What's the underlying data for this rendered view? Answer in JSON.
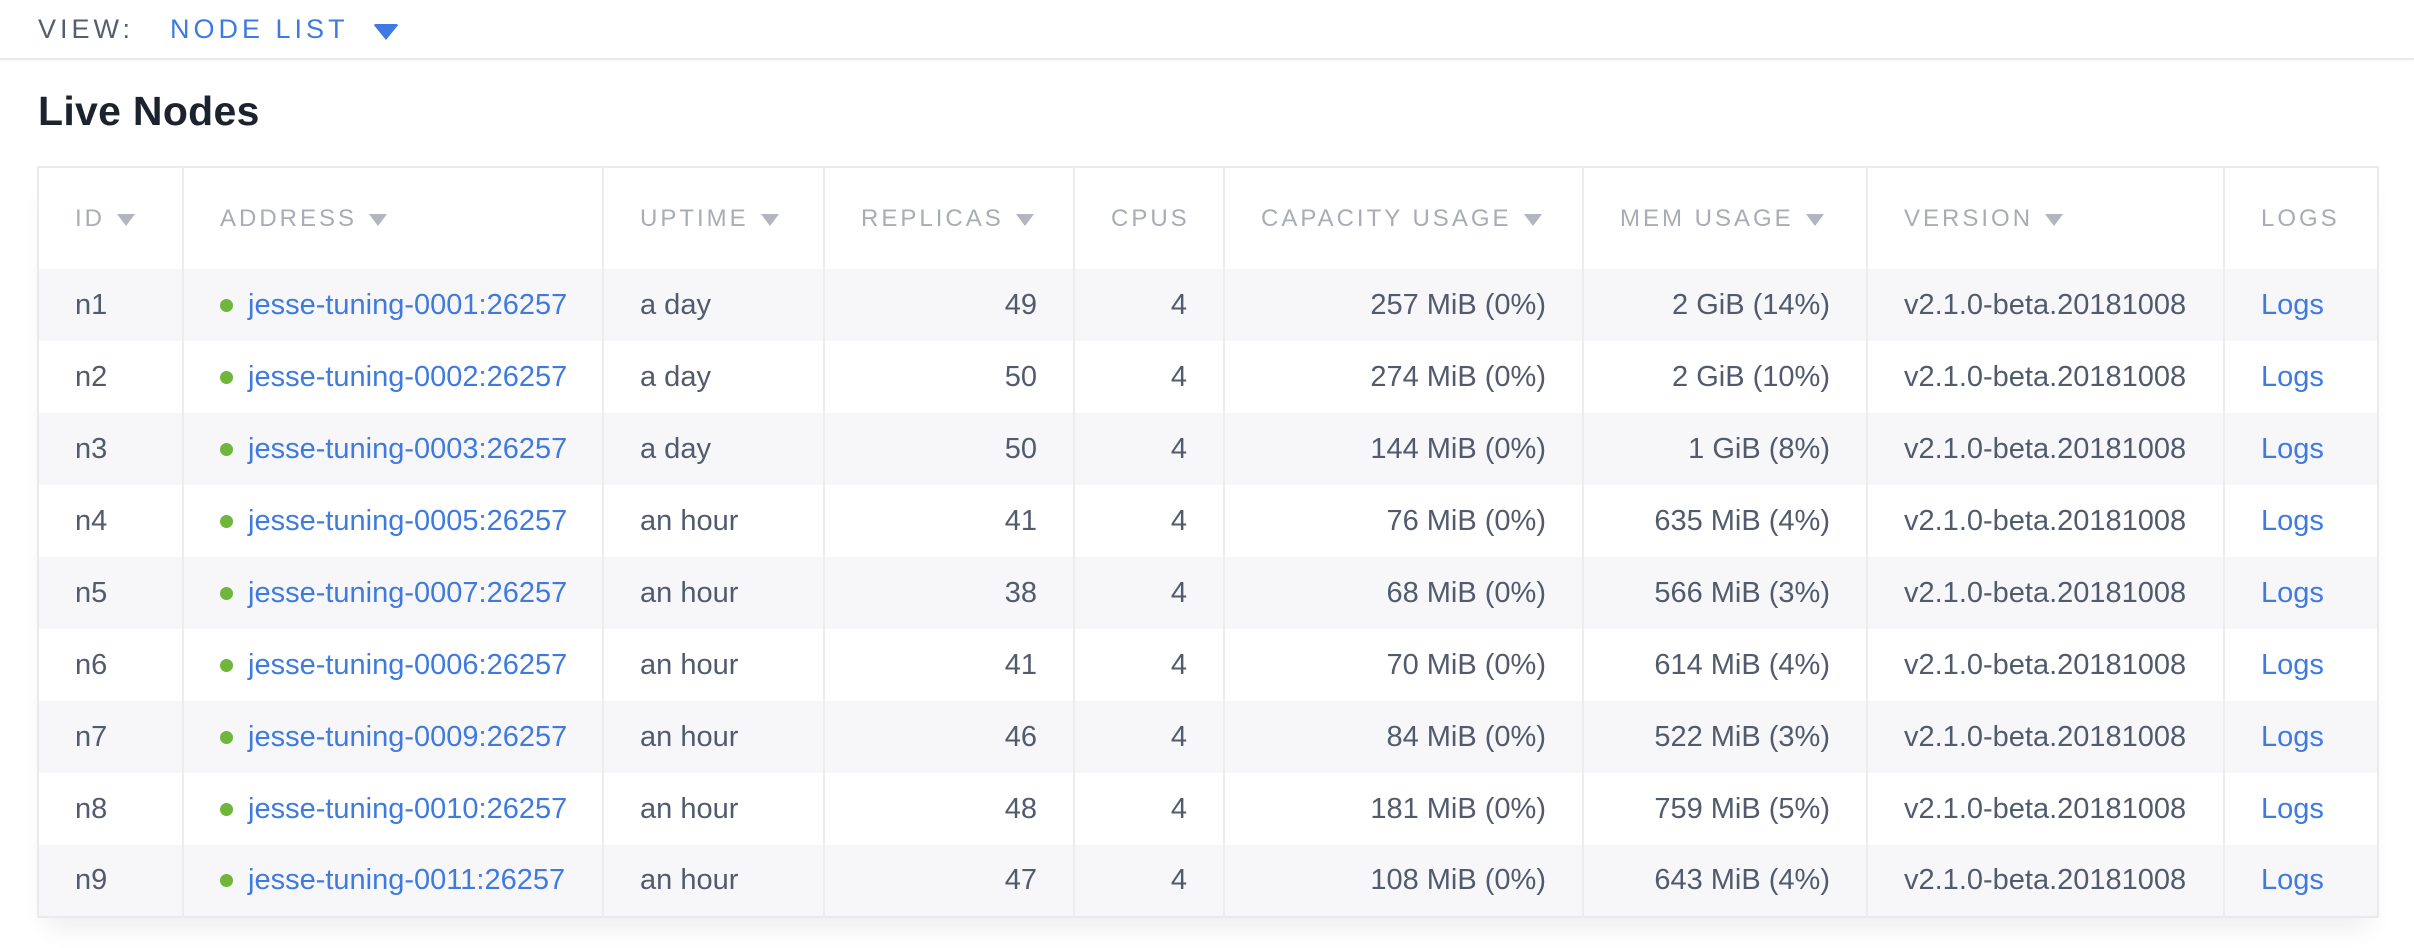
{
  "view_bar": {
    "label": "VIEW:",
    "selected": "NODE LIST"
  },
  "page": {
    "title": "Live Nodes"
  },
  "table": {
    "columns": [
      {
        "key": "id",
        "label": "ID",
        "sortable": true,
        "align": "left",
        "type": "text"
      },
      {
        "key": "address",
        "label": "ADDRESS",
        "sortable": true,
        "align": "left",
        "type": "node-link"
      },
      {
        "key": "uptime",
        "label": "UPTIME",
        "sortable": true,
        "align": "left",
        "type": "text"
      },
      {
        "key": "replicas",
        "label": "REPLICAS",
        "sortable": true,
        "align": "right",
        "type": "text"
      },
      {
        "key": "cpus",
        "label": "CPUS",
        "sortable": false,
        "align": "right",
        "type": "text"
      },
      {
        "key": "capacity_usage",
        "label": "CAPACITY USAGE",
        "sortable": true,
        "align": "right",
        "type": "text"
      },
      {
        "key": "mem_usage",
        "label": "MEM USAGE",
        "sortable": true,
        "align": "right",
        "type": "text"
      },
      {
        "key": "version",
        "label": "VERSION",
        "sortable": true,
        "align": "left",
        "type": "text"
      },
      {
        "key": "logs",
        "label": "LOGS",
        "sortable": false,
        "align": "left",
        "type": "logs-link"
      }
    ],
    "rows": [
      {
        "id": "n1",
        "status": "live",
        "address": "jesse-tuning-0001:26257",
        "uptime": "a day",
        "replicas": "49",
        "cpus": "4",
        "capacity_usage": "257 MiB (0%)",
        "mem_usage": "2 GiB (14%)",
        "version": "v2.1.0-beta.20181008",
        "logs": "Logs"
      },
      {
        "id": "n2",
        "status": "live",
        "address": "jesse-tuning-0002:26257",
        "uptime": "a day",
        "replicas": "50",
        "cpus": "4",
        "capacity_usage": "274 MiB (0%)",
        "mem_usage": "2 GiB (10%)",
        "version": "v2.1.0-beta.20181008",
        "logs": "Logs"
      },
      {
        "id": "n3",
        "status": "live",
        "address": "jesse-tuning-0003:26257",
        "uptime": "a day",
        "replicas": "50",
        "cpus": "4",
        "capacity_usage": "144 MiB (0%)",
        "mem_usage": "1 GiB (8%)",
        "version": "v2.1.0-beta.20181008",
        "logs": "Logs"
      },
      {
        "id": "n4",
        "status": "live",
        "address": "jesse-tuning-0005:26257",
        "uptime": "an hour",
        "replicas": "41",
        "cpus": "4",
        "capacity_usage": "76 MiB (0%)",
        "mem_usage": "635 MiB (4%)",
        "version": "v2.1.0-beta.20181008",
        "logs": "Logs"
      },
      {
        "id": "n5",
        "status": "live",
        "address": "jesse-tuning-0007:26257",
        "uptime": "an hour",
        "replicas": "38",
        "cpus": "4",
        "capacity_usage": "68 MiB (0%)",
        "mem_usage": "566 MiB (3%)",
        "version": "v2.1.0-beta.20181008",
        "logs": "Logs"
      },
      {
        "id": "n6",
        "status": "live",
        "address": "jesse-tuning-0006:26257",
        "uptime": "an hour",
        "replicas": "41",
        "cpus": "4",
        "capacity_usage": "70 MiB (0%)",
        "mem_usage": "614 MiB (4%)",
        "version": "v2.1.0-beta.20181008",
        "logs": "Logs"
      },
      {
        "id": "n7",
        "status": "live",
        "address": "jesse-tuning-0009:26257",
        "uptime": "an hour",
        "replicas": "46",
        "cpus": "4",
        "capacity_usage": "84 MiB (0%)",
        "mem_usage": "522 MiB (3%)",
        "version": "v2.1.0-beta.20181008",
        "logs": "Logs"
      },
      {
        "id": "n8",
        "status": "live",
        "address": "jesse-tuning-0010:26257",
        "uptime": "an hour",
        "replicas": "48",
        "cpus": "4",
        "capacity_usage": "181 MiB (0%)",
        "mem_usage": "759 MiB (5%)",
        "version": "v2.1.0-beta.20181008",
        "logs": "Logs"
      },
      {
        "id": "n9",
        "status": "live",
        "address": "jesse-tuning-0011:26257",
        "uptime": "an hour",
        "replicas": "47",
        "cpus": "4",
        "capacity_usage": "108 MiB (0%)",
        "mem_usage": "643 MiB (4%)",
        "version": "v2.1.0-beta.20181008",
        "logs": "Logs"
      }
    ]
  },
  "icons": {
    "view_caret": "caret-down-icon",
    "sort_caret": "sort-caret-icon",
    "live_status": "live-status-dot-icon"
  },
  "colors": {
    "link_blue": "#3e7ae0",
    "live_green": "#70b53c",
    "header_gray": "#a8acb4",
    "body_text": "#525a6e",
    "title_text": "#1d232e",
    "row_stripe": "#f7f7f9",
    "border": "#ededf0"
  }
}
